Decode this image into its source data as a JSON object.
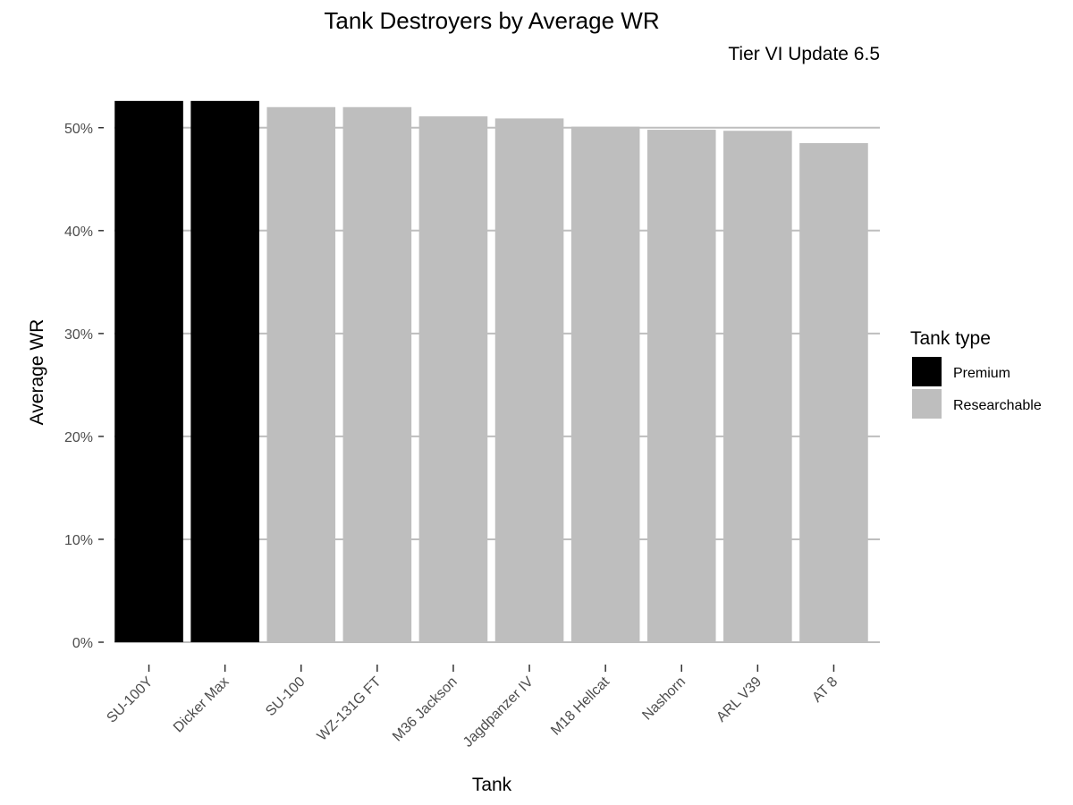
{
  "chart_data": {
    "type": "bar",
    "title": "Tank Destroyers by Average WR",
    "subtitle": "Tier VI Update 6.5",
    "xlabel": "Tank",
    "ylabel": "Average WR",
    "ylim": [
      0,
      52.5
    ],
    "yticks": [
      0,
      10,
      20,
      30,
      40,
      50
    ],
    "ytick_labels": [
      "0%",
      "10%",
      "20%",
      "30%",
      "40%",
      "50%"
    ],
    "grid": true,
    "legend_position": "right",
    "legend_title": "Tank type",
    "legend": [
      {
        "name": "Premium",
        "color": "#000000"
      },
      {
        "name": "Researchable",
        "color": "#bebebe"
      }
    ],
    "categories": [
      "SU-100Y",
      "Dicker Max",
      "SU-100",
      "WZ-131G FT",
      "M36 Jackson",
      "Jagdpanzer IV",
      "M18 Hellcat",
      "Nashorn",
      "ARL V39",
      "AT 8"
    ],
    "values": [
      52.6,
      52.6,
      52.0,
      52.0,
      51.1,
      50.9,
      50.1,
      49.8,
      49.7,
      48.5
    ],
    "types": [
      "Premium",
      "Premium",
      "Researchable",
      "Researchable",
      "Researchable",
      "Researchable",
      "Researchable",
      "Researchable",
      "Researchable",
      "Researchable"
    ]
  }
}
